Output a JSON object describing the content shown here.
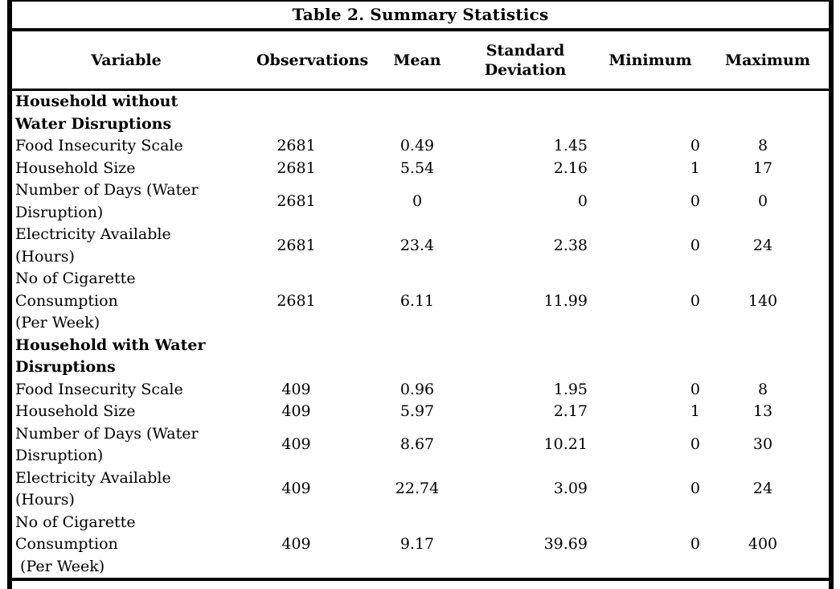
{
  "page": {
    "title": "Table 2. Summary Statistics"
  },
  "colors": {
    "background": "#ffffff",
    "text": "#000000",
    "border": "#000000"
  },
  "table": {
    "columns": [
      "Variable",
      "Observations",
      "Mean",
      "Standard Deviation",
      "Minimum",
      "Maximum"
    ],
    "sections": [
      {
        "label": [
          "Household without",
          "Water Disruptions"
        ],
        "rows": [
          {
            "variable": [
              "Food Insecurity Scale"
            ],
            "observations": "2681",
            "mean": "0.49",
            "std_dev": "1.45",
            "minimum": "0",
            "maximum": "8"
          },
          {
            "variable": [
              "Household Size"
            ],
            "observations": "2681",
            "mean": "5.54",
            "std_dev": "2.16",
            "minimum": "1",
            "maximum": "17"
          },
          {
            "variable": [
              "Number of Days (Water",
              "Disruption)"
            ],
            "observations": "2681",
            "mean": "0",
            "std_dev": "0",
            "minimum": "0",
            "maximum": "0"
          },
          {
            "variable": [
              "Electricity Available",
              "(Hours)"
            ],
            "observations": "2681",
            "mean": "23.4",
            "std_dev": "2.38",
            "minimum": "0",
            "maximum": "24"
          },
          {
            "variable": [
              "No of Cigarette",
              "Consumption",
              "(Per Week)"
            ],
            "observations": "2681",
            "mean": "6.11",
            "std_dev": "11.99",
            "minimum": "0",
            "maximum": "140"
          }
        ]
      },
      {
        "label": [
          "Household with Water",
          "Disruptions"
        ],
        "rows": [
          {
            "variable": [
              "Food Insecurity Scale"
            ],
            "observations": "409",
            "mean": "0.96",
            "std_dev": "1.95",
            "minimum": "0",
            "maximum": "8"
          },
          {
            "variable": [
              "Household Size"
            ],
            "observations": "409",
            "mean": "5.97",
            "std_dev": "2.17",
            "minimum": "1",
            "maximum": "13"
          },
          {
            "variable": [
              "Number of Days (Water",
              "Disruption)"
            ],
            "observations": "409",
            "mean": "8.67",
            "std_dev": "10.21",
            "minimum": "0",
            "maximum": "30"
          },
          {
            "variable": [
              "Electricity Available",
              "(Hours)"
            ],
            "observations": "409",
            "mean": "22.74",
            "std_dev": "3.09",
            "minimum": "0",
            "maximum": "24"
          },
          {
            "variable": [
              "No of Cigarette",
              "Consumption",
              " (Per Week)"
            ],
            "observations": "409",
            "mean": "9.17",
            "std_dev": "39.69",
            "minimum": "0",
            "maximum": "400"
          }
        ]
      }
    ]
  }
}
